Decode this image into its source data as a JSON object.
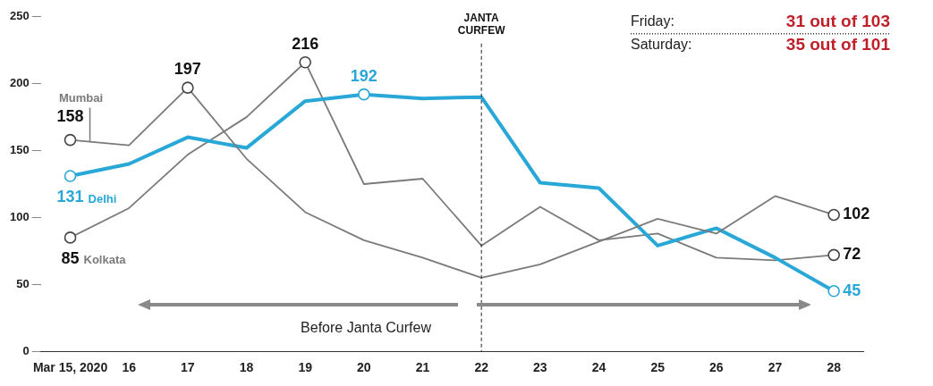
{
  "chart_data": {
    "type": "line",
    "categories": [
      "Mar 15, 2020",
      "16",
      "17",
      "18",
      "19",
      "20",
      "21",
      "22",
      "23",
      "24",
      "25",
      "26",
      "27",
      "28"
    ],
    "series": [
      {
        "name": "Mumbai",
        "color": "#7a7a7a",
        "values": [
          158,
          154,
          197,
          144,
          104,
          83,
          70,
          55,
          65,
          82,
          99,
          88,
          116,
          102
        ],
        "value_labels": [
          "158",
          null,
          "197",
          null,
          null,
          null,
          null,
          null,
          null,
          null,
          null,
          null,
          null,
          "102"
        ]
      },
      {
        "name": "Delhi",
        "color": "#29a8d8",
        "values": [
          131,
          140,
          160,
          152,
          187,
          192,
          189,
          190,
          126,
          122,
          79,
          92,
          70,
          45
        ],
        "value_labels": [
          "131",
          null,
          null,
          null,
          null,
          "192",
          null,
          null,
          null,
          null,
          null,
          null,
          null,
          "45"
        ]
      },
      {
        "name": "Kolkata",
        "color": "#7a7a7a",
        "values": [
          85,
          107,
          147,
          175,
          216,
          125,
          129,
          79,
          108,
          83,
          88,
          70,
          68,
          72
        ],
        "value_labels": [
          "85",
          null,
          null,
          null,
          "216",
          null,
          null,
          null,
          null,
          null,
          null,
          null,
          null,
          "72"
        ]
      }
    ],
    "ylim": [
      0,
      250
    ],
    "yticks": [
      0,
      50,
      100,
      150,
      200,
      250
    ],
    "ref_lines": [
      {
        "axis": "x",
        "value": "22",
        "label": "JANTA CURFEW",
        "line_style": "dashed"
      }
    ],
    "annotations": [
      "Friday: 31 out of 103",
      "Saturday: 35 out of 101",
      "Before Janta Curfew"
    ],
    "grid": false,
    "legend": false
  }
}
